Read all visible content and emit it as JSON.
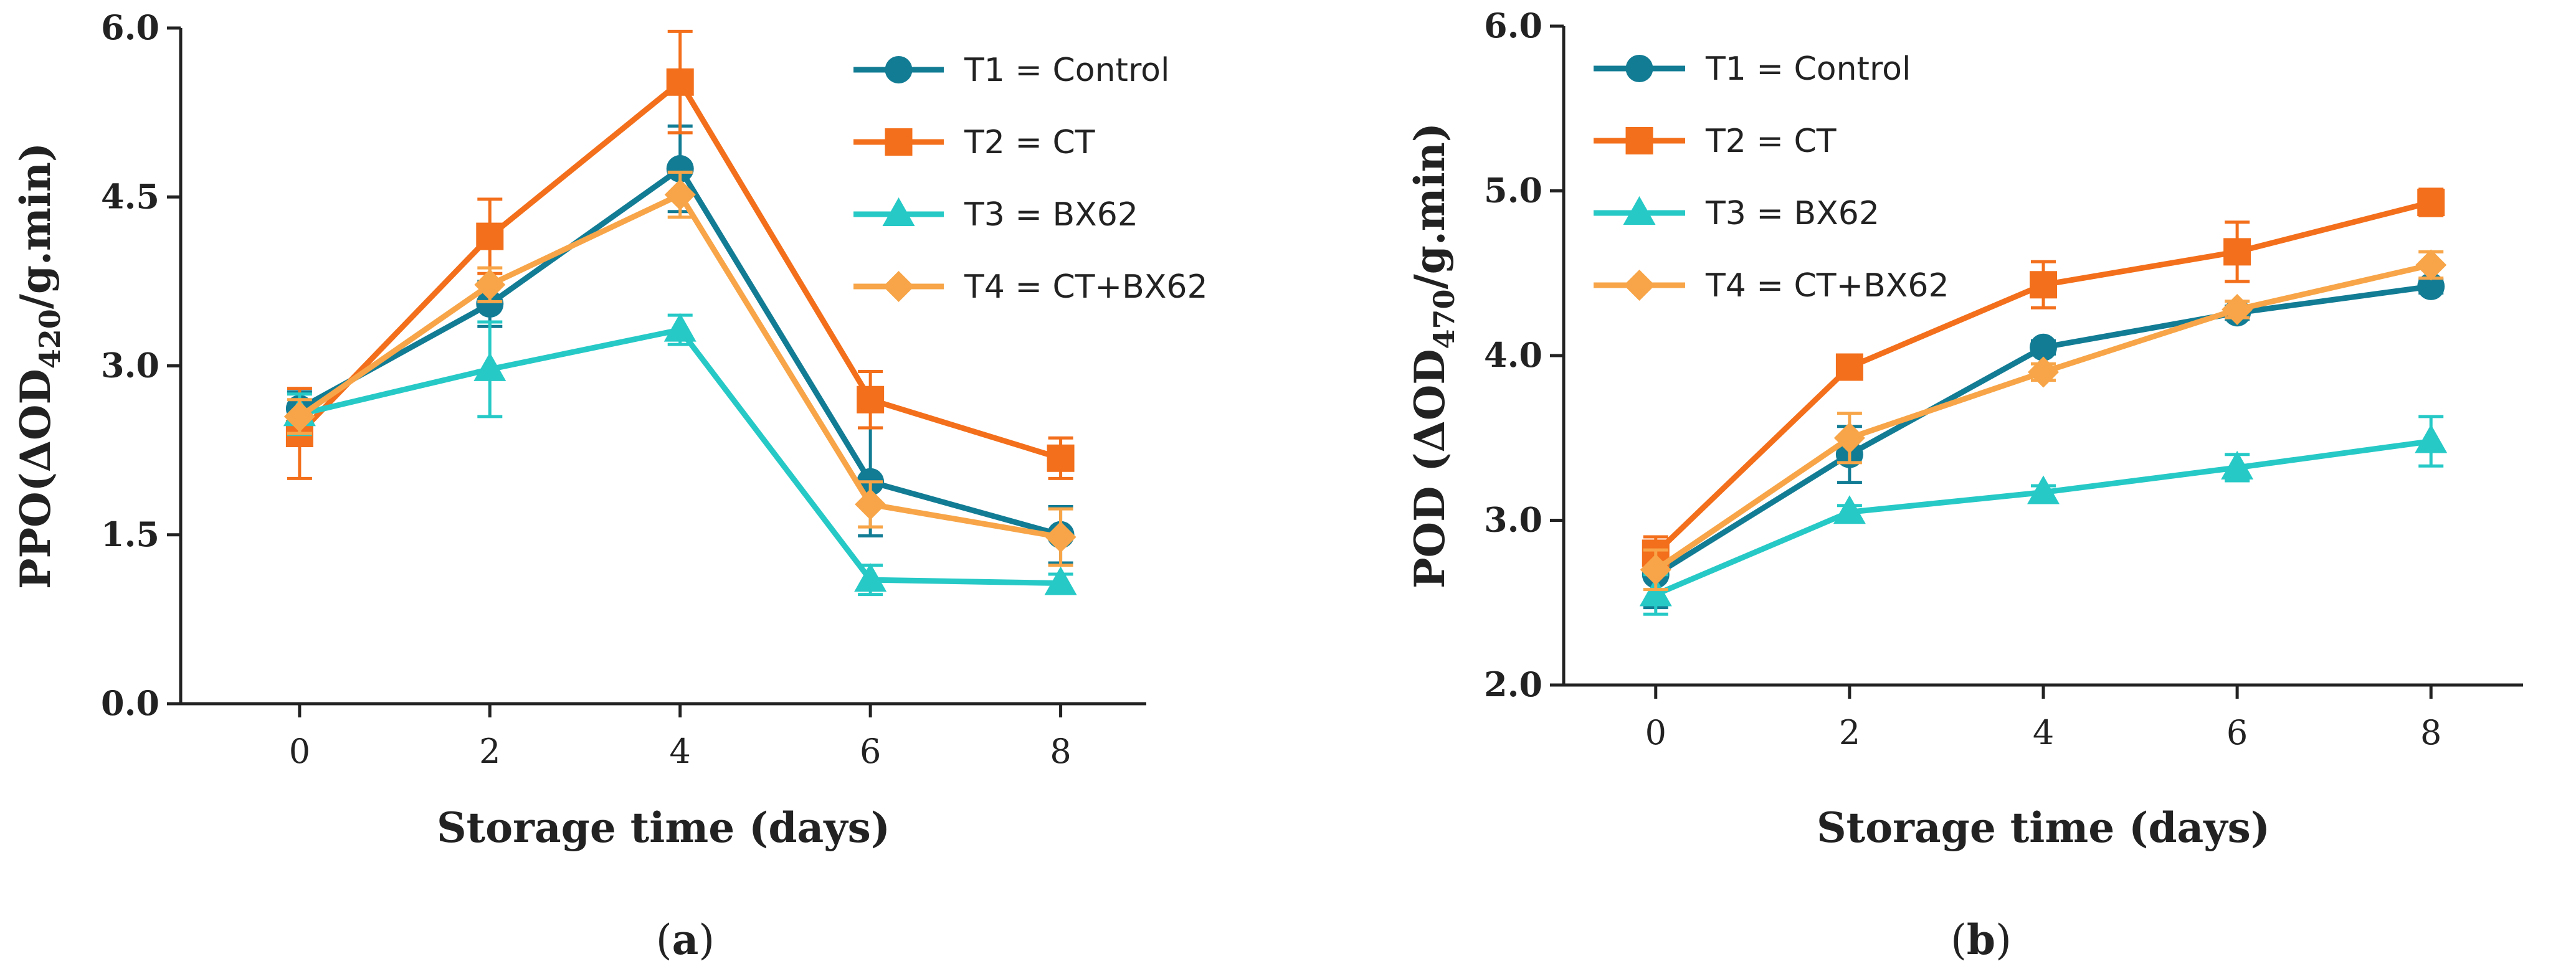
{
  "colors": {
    "T1": "#127c94",
    "T2": "#f36f1b",
    "T3": "#26c9c6",
    "T4": "#f7a548"
  },
  "chart_data": [
    {
      "type": "line",
      "panel_label_prefix": "(",
      "panel_letter": "a",
      "panel_label_suffix": ")",
      "xlabel": "Storage time (days)",
      "ylabel_prefix": "PPO(ΔOD",
      "ylabel_sub": "420",
      "ylabel_suffix": "/g.min)",
      "x": [
        0,
        2,
        4,
        6,
        8
      ],
      "xlim": [
        -1.25,
        8.9
      ],
      "ylim": [
        0,
        6
      ],
      "yticks": [
        0,
        1.5,
        3,
        4.5,
        6
      ],
      "ytick_labels": [
        "0.0",
        "1.5",
        "3.0",
        "4.5",
        "6.0"
      ],
      "legend_position": "top-right",
      "series": [
        {
          "name": "T1 = Control",
          "color": "#127c94",
          "marker": "circle",
          "values": [
            2.62,
            3.55,
            4.75,
            1.97,
            1.5
          ],
          "errors": [
            0.15,
            0.2,
            0.38,
            0.48,
            0.25
          ]
        },
        {
          "name": "T2 = CT",
          "color": "#f36f1b",
          "marker": "square",
          "values": [
            2.4,
            4.15,
            5.52,
            2.7,
            2.18
          ],
          "errors": [
            0.4,
            0.33,
            0.45,
            0.25,
            0.18
          ]
        },
        {
          "name": "T3 = BX62",
          "color": "#26c9c6",
          "marker": "triangle",
          "values": [
            2.57,
            2.97,
            3.32,
            1.1,
            1.07
          ],
          "errors": [
            0.18,
            0.42,
            0.13,
            0.13,
            0.08
          ]
        },
        {
          "name": "T4 = CT+BX62",
          "color": "#f7a548",
          "marker": "diamond",
          "values": [
            2.55,
            3.72,
            4.52,
            1.77,
            1.48
          ],
          "errors": [
            0.15,
            0.15,
            0.2,
            0.2,
            0.25
          ]
        }
      ]
    },
    {
      "type": "line",
      "panel_label_prefix": "(",
      "panel_letter": "b",
      "panel_label_suffix": ")",
      "xlabel": "Storage time (days)",
      "ylabel_prefix": "POD (ΔOD",
      "ylabel_sub": "470",
      "ylabel_suffix": "/g.min)",
      "x": [
        0,
        2,
        4,
        6,
        8
      ],
      "xlim": [
        -0.95,
        8.95
      ],
      "ylim": [
        2,
        6
      ],
      "yticks": [
        2,
        3,
        4,
        5,
        6
      ],
      "ytick_labels": [
        "2.0",
        "3.0",
        "4.0",
        "5.0",
        "6.0"
      ],
      "legend_position": "top-left",
      "series": [
        {
          "name": "T1 = Control",
          "color": "#127c94",
          "marker": "circle",
          "values": [
            2.67,
            3.4,
            4.05,
            4.26,
            4.42
          ],
          "errors": [
            0.2,
            0.17,
            0.04,
            0.04,
            0.04
          ]
        },
        {
          "name": "T2 = CT",
          "color": "#f36f1b",
          "marker": "square",
          "values": [
            2.8,
            3.93,
            4.43,
            4.63,
            4.93
          ],
          "errors": [
            0.1,
            0.06,
            0.14,
            0.18,
            0.08
          ]
        },
        {
          "name": "T3 = BX62",
          "color": "#26c9c6",
          "marker": "triangle",
          "values": [
            2.55,
            3.05,
            3.17,
            3.32,
            3.48
          ],
          "errors": [
            0.12,
            0.04,
            0.04,
            0.08,
            0.15
          ]
        },
        {
          "name": "T4 = CT+BX62",
          "color": "#f7a548",
          "marker": "diamond",
          "values": [
            2.7,
            3.5,
            3.9,
            4.28,
            4.55
          ],
          "errors": [
            0.12,
            0.15,
            0.05,
            0.05,
            0.08
          ]
        }
      ]
    }
  ]
}
